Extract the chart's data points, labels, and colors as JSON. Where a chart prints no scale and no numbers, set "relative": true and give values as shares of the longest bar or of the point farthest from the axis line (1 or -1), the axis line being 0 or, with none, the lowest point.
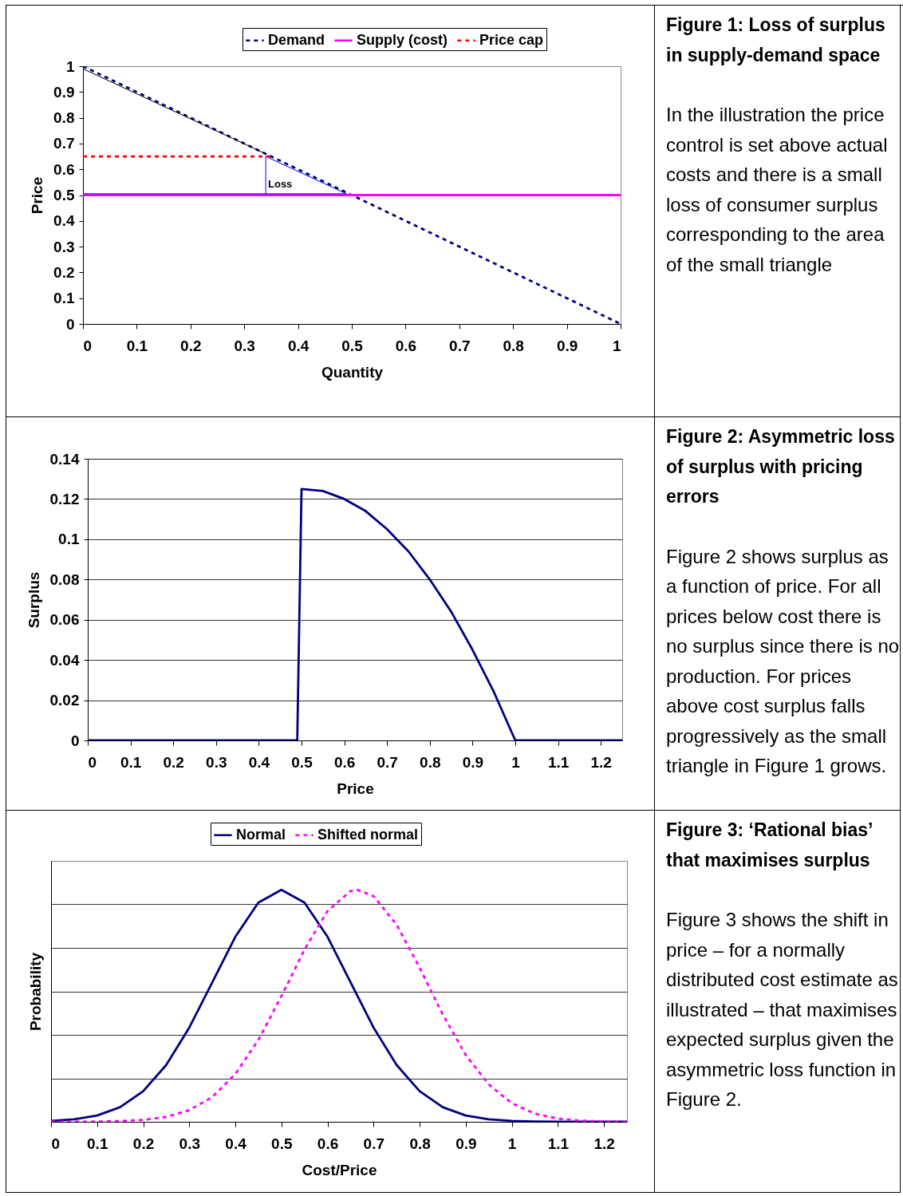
{
  "chart_data": [
    {
      "type": "line",
      "xlabel": "Quantity",
      "ylabel": "Price",
      "xlim": [
        0,
        1
      ],
      "ylim": [
        0,
        1
      ],
      "xticks": [
        0,
        0.1,
        0.2,
        0.3,
        0.4,
        0.5,
        0.6,
        0.7,
        0.8,
        0.9,
        1
      ],
      "yticks": [
        0,
        0.1,
        0.2,
        0.3,
        0.4,
        0.5,
        0.6,
        0.7,
        0.8,
        0.9,
        1
      ],
      "grid": false,
      "legend": "top",
      "annotations": [
        "Loss"
      ],
      "series": [
        {
          "name": "Demand",
          "color": "#000080",
          "line_style": "dashed",
          "x": [
            0,
            1
          ],
          "values": [
            1,
            0
          ]
        },
        {
          "name": "Supply (cost)",
          "color": "#ff00ff",
          "line_style": "solid",
          "x": [
            0,
            1
          ],
          "values": [
            0.5,
            0.5
          ]
        },
        {
          "color": "#000000",
          "line_style": "solid",
          "x": [
            0,
            0.34
          ],
          "values": [
            0.99,
            0.66
          ]
        },
        {
          "color": "#0000ff",
          "line_style": "solid",
          "x": [
            0,
            0.49,
            0.34,
            0.34
          ],
          "values": [
            0.505,
            0.505,
            0.65,
            0.505
          ]
        },
        {
          "name": "Price cap",
          "color": "#ff0000",
          "line_style": "dashed",
          "x": [
            0,
            0.35
          ],
          "values": [
            0.65,
            0.65
          ]
        }
      ]
    },
    {
      "type": "other",
      "title": "Figure 1: Loss of surplus in supply-demand space",
      "annotations": [
        "In the illustration the price control is set above actual costs and there is a small loss of consumer surplus corresponding to the area of the small triangle"
      ]
    },
    {
      "type": "line",
      "xlabel": "Price",
      "ylabel": "Surplus",
      "xlim": [
        0,
        1.25
      ],
      "ylim": [
        0,
        0.14
      ],
      "xticks": [
        0,
        0.1,
        0.2,
        0.3,
        0.4,
        0.5,
        0.6,
        0.7,
        0.8,
        0.9,
        1,
        1.1,
        1.2
      ],
      "yticks": [
        0,
        0.02,
        0.04,
        0.06,
        0.08,
        0.1,
        0.12,
        0.14
      ],
      "grid": "y",
      "legend": false,
      "series": [
        {
          "color": "#000080",
          "line_style": "solid",
          "x": [
            0,
            0.49,
            0.5,
            0.55,
            0.6,
            0.65,
            0.7,
            0.75,
            0.8,
            0.85,
            0.9,
            0.95,
            1,
            1.25
          ],
          "values": [
            0,
            0,
            0.125,
            0.124,
            0.12,
            0.114,
            0.105,
            0.094,
            0.08,
            0.064,
            0.045,
            0.024,
            0,
            0
          ]
        }
      ]
    },
    {
      "type": "other",
      "title": "Figure 2: Asymmetric loss of surplus with pricing errors",
      "annotations": [
        "Figure 2 shows surplus as a function of price.  For all prices below cost there is no surplus since there is no production.  For prices above cost surplus falls progressively as the small triangle in Figure 1 grows."
      ]
    },
    {
      "type": "line",
      "relative": true,
      "xlabel": "Cost/Price",
      "ylabel": "Probability",
      "xlim": [
        0,
        1.25
      ],
      "xticks": [
        0,
        0.1,
        0.2,
        0.3,
        0.4,
        0.5,
        0.6,
        0.7,
        0.8,
        0.9,
        1,
        1.1,
        1.2
      ],
      "grid": "y",
      "legend": "top",
      "tick_labels": "x",
      "series": [
        {
          "name": "Normal",
          "color": "#000080",
          "line_style": "solid",
          "x": [
            0,
            0.05,
            0.1,
            0.15,
            0.2,
            0.25,
            0.3,
            0.35,
            0.4,
            0.45,
            0.5,
            0.55,
            0.6,
            0.65,
            0.7,
            0.75,
            0.8,
            0.85,
            0.9,
            0.95,
            1,
            1.05,
            1.1,
            1.15,
            1.2,
            1.25
          ],
          "values": [
            0.004,
            0.011,
            0.027,
            0.063,
            0.132,
            0.245,
            0.406,
            0.602,
            0.798,
            0.945,
            1,
            0.945,
            0.798,
            0.602,
            0.406,
            0.245,
            0.132,
            0.063,
            0.027,
            0.011,
            0.004,
            0.001,
            0,
            0,
            0,
            0
          ]
        },
        {
          "name": "Shifted normal",
          "color": "#ff00ff",
          "line_style": "dashed",
          "x": [
            0,
            0.05,
            0.1,
            0.15,
            0.2,
            0.25,
            0.3,
            0.35,
            0.4,
            0.45,
            0.5,
            0.55,
            0.6,
            0.65,
            0.665,
            0.7,
            0.75,
            0.8,
            0.85,
            0.9,
            0.95,
            1,
            1.05,
            1.1,
            1.15,
            1.2,
            1.25
          ],
          "values": [
            0,
            0,
            0.001,
            0.003,
            0.008,
            0.021,
            0.05,
            0.107,
            0.206,
            0.353,
            0.542,
            0.742,
            0.909,
            0.995,
            1,
            0.973,
            0.85,
            0.664,
            0.463,
            0.288,
            0.161,
            0.08,
            0.035,
            0.014,
            0.005,
            0.002,
            0
          ]
        }
      ]
    },
    {
      "type": "other",
      "title": "Figure 3: ‘Rational bias’ that maximises surplus",
      "annotations": [
        "Figure 3 shows the shift in price – for a normally distributed cost estimate as illustrated – that maximises expected surplus given the asymmetric loss function in Figure 2."
      ]
    }
  ]
}
